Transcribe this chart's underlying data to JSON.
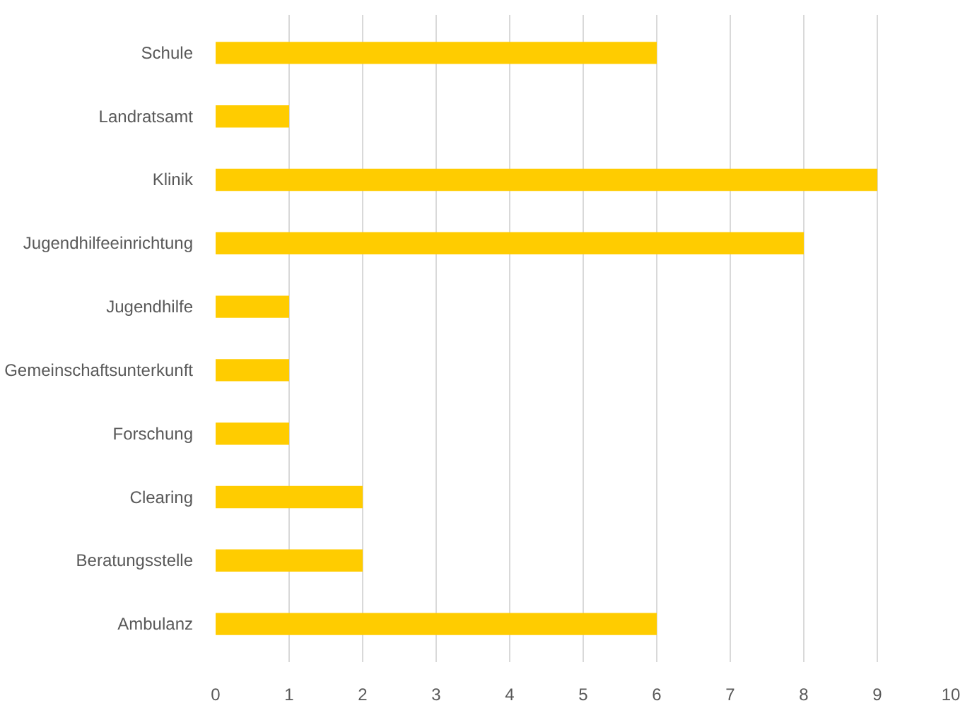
{
  "chart_data": {
    "type": "bar",
    "orientation": "horizontal",
    "categories": [
      "Schule",
      "Landratsamt",
      "Klinik",
      "Jugendhilfeeinrichtung",
      "Jugendhilfe",
      "Gemeinschaftsunterkunft",
      "Forschung",
      "Clearing",
      "Beratungsstelle",
      "Ambulanz"
    ],
    "values": [
      6,
      1,
      9,
      8,
      1,
      1,
      1,
      2,
      2,
      6
    ],
    "color": "#ffcc00",
    "xlim": [
      0,
      10
    ],
    "xticks": [
      0,
      1,
      2,
      3,
      4,
      5,
      6,
      7,
      8,
      9,
      10
    ],
    "grid": "x"
  }
}
